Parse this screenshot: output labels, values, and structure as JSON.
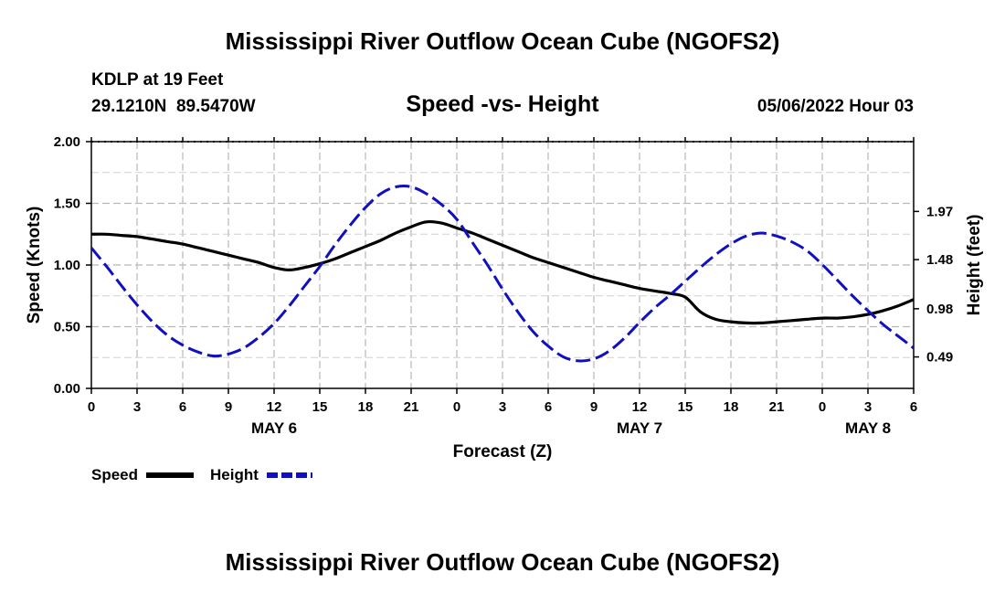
{
  "chart_data": {
    "type": "line",
    "title": "Mississippi River Outflow Ocean Cube (NGOFS2)",
    "footer_title": "Mississippi River Outflow Ocean Cube (NGOFS2)",
    "station": "KDLP at 19 Feet",
    "location": "29.1210N  89.5470W",
    "subtitle": "Speed -vs- Height",
    "timestamp": "05/06/2022 Hour 03",
    "xlabel": "Forecast (Z)",
    "ylabel_left": "Speed (Knots)",
    "ylabel_right": "Height (feet)",
    "x_range_hours": [
      0,
      54
    ],
    "ylim_left": [
      0,
      2
    ],
    "ylim_right": [
      0.17,
      2.68
    ],
    "x_tick_hours": [
      0,
      3,
      6,
      9,
      12,
      15,
      18,
      21,
      24,
      27,
      30,
      33,
      36,
      39,
      42,
      45,
      48,
      51,
      54
    ],
    "x_tick_labels": [
      "0",
      "3",
      "6",
      "9",
      "12",
      "15",
      "18",
      "21",
      "0",
      "3",
      "6",
      "9",
      "12",
      "15",
      "18",
      "21",
      "0",
      "3",
      "6"
    ],
    "date_labels": [
      {
        "label": "MAY 6",
        "hour": 12
      },
      {
        "label": "MAY 7",
        "hour": 36
      },
      {
        "label": "MAY 8",
        "hour": 51
      }
    ],
    "y_left_ticks": [
      "0.00",
      "0.50",
      "1.00",
      "1.50",
      "2.00"
    ],
    "y_left_tick_values": [
      0,
      0.5,
      1.0,
      1.5,
      2.0
    ],
    "y_right_ticks": [
      "0.49",
      "0.98",
      "1.48",
      "1.97"
    ],
    "y_right_tick_values": [
      0.49,
      0.98,
      1.48,
      1.97
    ],
    "grid": true,
    "series": [
      {
        "name": "Speed",
        "axis": "left",
        "color": "#000000",
        "style": "solid",
        "x": [
          0,
          1,
          2,
          3,
          4,
          5,
          6,
          7,
          8,
          9,
          10,
          11,
          12,
          13,
          14,
          15,
          16,
          17,
          18,
          19,
          20,
          21,
          22,
          23,
          24,
          25,
          26,
          27,
          28,
          29,
          30,
          31,
          32,
          33,
          34,
          35,
          36,
          37,
          38,
          39,
          40,
          41,
          42,
          43,
          44,
          45,
          46,
          47,
          48,
          49,
          50,
          51,
          52,
          53,
          54
        ],
        "values": [
          1.25,
          1.25,
          1.24,
          1.23,
          1.21,
          1.19,
          1.17,
          1.14,
          1.11,
          1.08,
          1.05,
          1.02,
          0.98,
          0.96,
          0.98,
          1.01,
          1.05,
          1.1,
          1.15,
          1.2,
          1.26,
          1.31,
          1.35,
          1.34,
          1.3,
          1.26,
          1.21,
          1.16,
          1.11,
          1.06,
          1.02,
          0.98,
          0.94,
          0.9,
          0.87,
          0.84,
          0.81,
          0.79,
          0.77,
          0.74,
          0.62,
          0.56,
          0.54,
          0.53,
          0.53,
          0.54,
          0.55,
          0.56,
          0.57,
          0.57,
          0.58,
          0.6,
          0.63,
          0.67,
          0.72
        ]
      },
      {
        "name": "Height",
        "axis": "right",
        "color": "#1010c0",
        "style": "dashed",
        "x": [
          0,
          1,
          2,
          3,
          4,
          5,
          6,
          7,
          8,
          9,
          10,
          11,
          12,
          13,
          14,
          15,
          16,
          17,
          18,
          19,
          20,
          21,
          22,
          23,
          24,
          25,
          26,
          27,
          28,
          29,
          30,
          31,
          32,
          33,
          34,
          35,
          36,
          37,
          38,
          39,
          40,
          41,
          42,
          43,
          44,
          45,
          46,
          47,
          48,
          49,
          50,
          51,
          52,
          53,
          54
        ],
        "values": [
          1.6,
          1.41,
          1.21,
          1.02,
          0.85,
          0.71,
          0.61,
          0.54,
          0.5,
          0.52,
          0.58,
          0.69,
          0.83,
          1.01,
          1.21,
          1.41,
          1.63,
          1.83,
          2.01,
          2.15,
          2.22,
          2.22,
          2.15,
          2.04,
          1.89,
          1.66,
          1.43,
          1.18,
          0.95,
          0.75,
          0.6,
          0.49,
          0.45,
          0.47,
          0.55,
          0.68,
          0.84,
          0.99,
          1.12,
          1.26,
          1.4,
          1.53,
          1.64,
          1.72,
          1.75,
          1.72,
          1.66,
          1.57,
          1.43,
          1.27,
          1.11,
          0.96,
          0.82,
          0.7,
          0.58
        ]
      }
    ]
  }
}
